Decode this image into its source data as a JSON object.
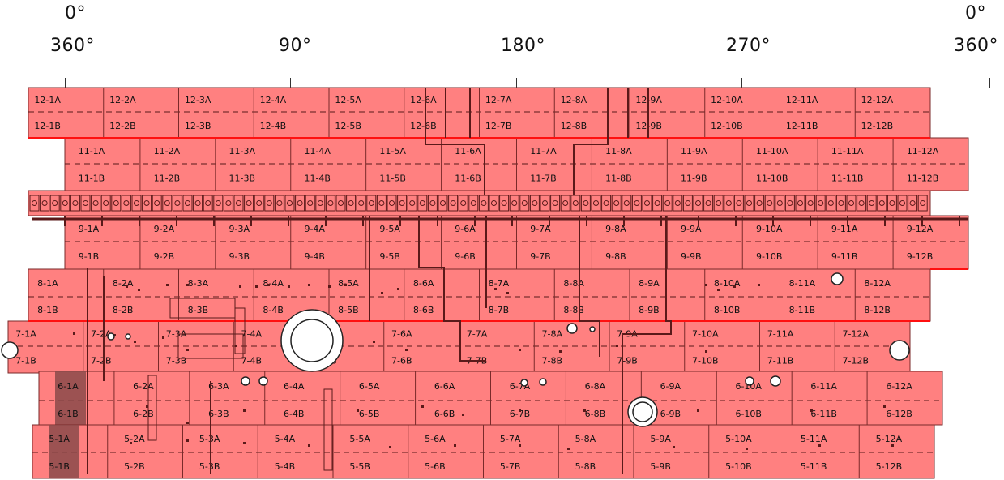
{
  "scale": {
    "top_left": "0°",
    "top_right": "0°",
    "labels": [
      "360°",
      "90°",
      "180°",
      "270°",
      "360°"
    ]
  },
  "colors": {
    "panel_fill": "#ff8080",
    "panel_stroke": "#7a2a2a",
    "line": "#5a1a1a",
    "highlight_cell": "#8b4a4a",
    "red_band": "#ff1010"
  },
  "rows": [
    {
      "id": "12",
      "cols": 12
    },
    {
      "id": "11",
      "cols": 12
    },
    {
      "id": "10",
      "cols": 0
    },
    {
      "id": "9",
      "cols": 12
    },
    {
      "id": "8",
      "cols": 12
    },
    {
      "id": "7",
      "cols": 12
    },
    {
      "id": "6",
      "cols": 12
    },
    {
      "id": "5",
      "cols": 12
    }
  ],
  "highlighted_cells": [
    "6-1A",
    "6-1B",
    "5-1A",
    "5-1B"
  ]
}
